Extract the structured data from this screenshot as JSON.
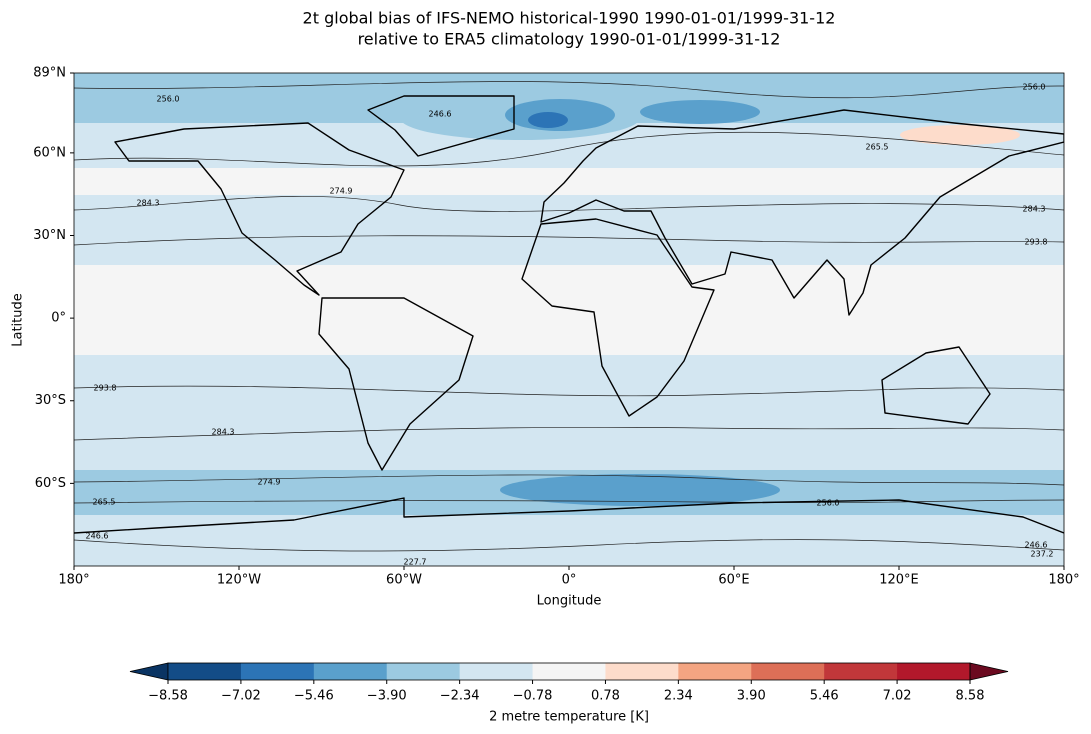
{
  "chart_data": {
    "type": "map",
    "title": "2t global bias of IFS-NEMO historical-1990 1990-01-01/1999-31-12",
    "subtitle": "relative to ERA5 climatology 1990-01-01/1999-31-12",
    "x_label": "Longitude",
    "y_label": "Latitude",
    "xlim": [
      -180,
      180
    ],
    "ylim": [
      -90,
      89
    ],
    "xticks": [
      {
        "value": -180,
        "label": "180°"
      },
      {
        "value": -120,
        "label": "120°W"
      },
      {
        "value": -60,
        "label": "60°W"
      },
      {
        "value": 0,
        "label": "0°"
      },
      {
        "value": 60,
        "label": "60°E"
      },
      {
        "value": 120,
        "label": "120°E"
      },
      {
        "value": 180,
        "label": "180°"
      }
    ],
    "yticks": [
      {
        "value": 89,
        "label": "89°N"
      },
      {
        "value": 60,
        "label": "60°N"
      },
      {
        "value": 30,
        "label": "30°N"
      },
      {
        "value": 0,
        "label": "0°"
      },
      {
        "value": -30,
        "label": "30°S"
      },
      {
        "value": -60,
        "label": "60°S"
      }
    ],
    "contour_labels": [
      "256.0",
      "246.6",
      "256.0",
      "265.5",
      "274.9",
      "284.3",
      "284.3",
      "293.8",
      "293.8",
      "284.3",
      "274.9",
      "265.5",
      "246.6",
      "256.0",
      "227.7",
      "246.6",
      "237.2"
    ],
    "colorbar": {
      "label": "2 metre temperature [K]",
      "ticks": [
        {
          "value": -8.58,
          "label": "−8.58"
        },
        {
          "value": -7.02,
          "label": "−7.02"
        },
        {
          "value": -5.46,
          "label": "−5.46"
        },
        {
          "value": -3.9,
          "label": "−3.90"
        },
        {
          "value": -2.34,
          "label": "−2.34"
        },
        {
          "value": -0.78,
          "label": "−0.78"
        },
        {
          "value": 0.78,
          "label": "0.78"
        },
        {
          "value": 2.34,
          "label": "2.34"
        },
        {
          "value": 3.9,
          "label": "3.90"
        },
        {
          "value": 5.46,
          "label": "5.46"
        },
        {
          "value": 7.02,
          "label": "7.02"
        },
        {
          "value": 8.58,
          "label": "8.58"
        }
      ],
      "colors": [
        "#0a3463",
        "#134c87",
        "#2c74b6",
        "#5aa0cc",
        "#9ccae1",
        "#d3e6f1",
        "#f5f5f5",
        "#fddccb",
        "#f4a582",
        "#dd6f57",
        "#c1373a",
        "#b2182b",
        "#6b0a20"
      ]
    }
  }
}
